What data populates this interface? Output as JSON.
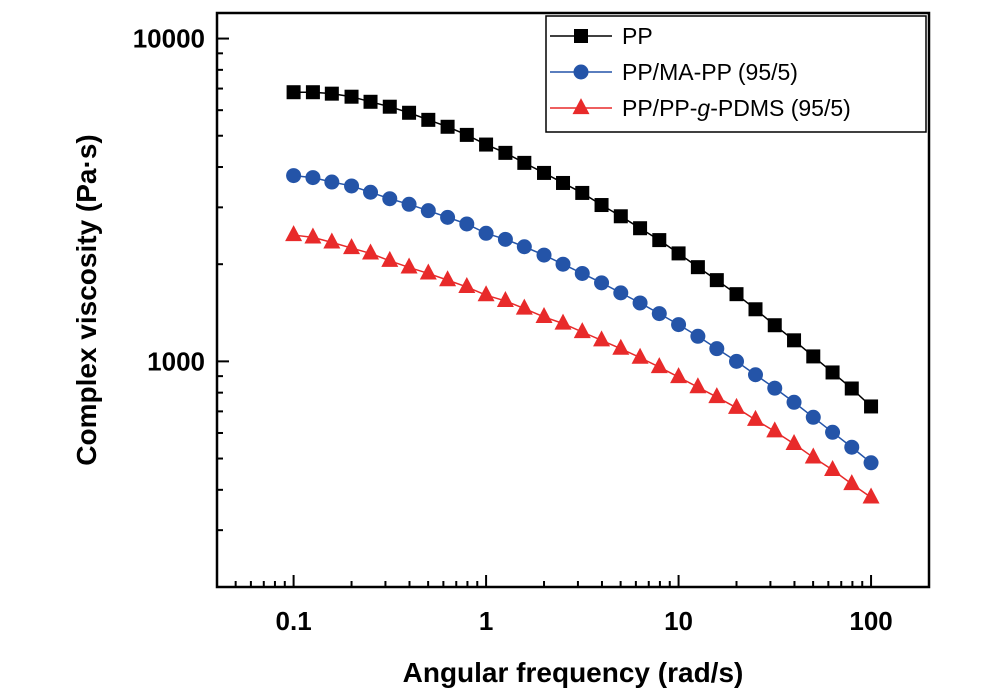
{
  "chart_data": {
    "type": "line",
    "title": "",
    "xlabel": "Angular frequency (rad/s)",
    "ylabel": "Complex viscosity (Pa·s)",
    "xscale": "log",
    "yscale": "log",
    "xlim": [
      0.04,
      200
    ],
    "ylim": [
      200,
      12000
    ],
    "x_ticks": [
      0.1,
      1,
      10,
      100
    ],
    "x_tick_labels": [
      "0.1",
      "1",
      "10",
      "100"
    ],
    "y_ticks": [
      1000,
      10000
    ],
    "y_tick_labels": [
      "1000",
      "10000"
    ],
    "grid": false,
    "legend_position": "top-right",
    "x": [
      0.1,
      0.126,
      0.158,
      0.2,
      0.251,
      0.316,
      0.398,
      0.501,
      0.631,
      0.794,
      1,
      1.26,
      1.58,
      2,
      2.51,
      3.16,
      3.98,
      5.01,
      6.31,
      7.94,
      10,
      12.6,
      15.8,
      20,
      25.1,
      31.6,
      39.8,
      50.1,
      63.1,
      79.4,
      100
    ],
    "series": [
      {
        "name": "PP",
        "legend_parts": [
          "PP"
        ],
        "color": "#000000",
        "marker": "square",
        "values": [
          6820,
          6820,
          6750,
          6605,
          6370,
          6150,
          5890,
          5600,
          5330,
          5030,
          4695,
          4425,
          4120,
          3835,
          3570,
          3325,
          3050,
          2815,
          2585,
          2375,
          2160,
          1958,
          1785,
          1615,
          1450,
          1294,
          1162,
          1036,
          924,
          824,
          725
        ]
      },
      {
        "name": "PP/MA-PP (95/5)",
        "legend_parts": [
          "PP/MA-PP (95/5)"
        ],
        "color": "#2454a8",
        "marker": "circle",
        "values": [
          3763,
          3709,
          3594,
          3495,
          3341,
          3190,
          3066,
          2930,
          2793,
          2665,
          2493,
          2388,
          2265,
          2134,
          2000,
          1872,
          1751,
          1630,
          1517,
          1406,
          1300,
          1196,
          1095,
          1000,
          909,
          826,
          747,
          671,
          603,
          542,
          485
        ]
      },
      {
        "name": "PP/PP-g-PDMS (95/5)",
        "legend_parts": [
          "PP/PP-",
          "g",
          "-PDMS (95/5)"
        ],
        "color": "#e82a2a",
        "marker": "triangle",
        "values": [
          2462,
          2421,
          2337,
          2244,
          2160,
          2049,
          1954,
          1872,
          1785,
          1701,
          1603,
          1539,
          1458,
          1373,
          1310,
          1233,
          1162,
          1095,
          1027,
          960,
          894,
          832,
          775,
          718,
          659,
          607,
          555,
          504,
          461,
          417,
          379
        ]
      }
    ]
  }
}
